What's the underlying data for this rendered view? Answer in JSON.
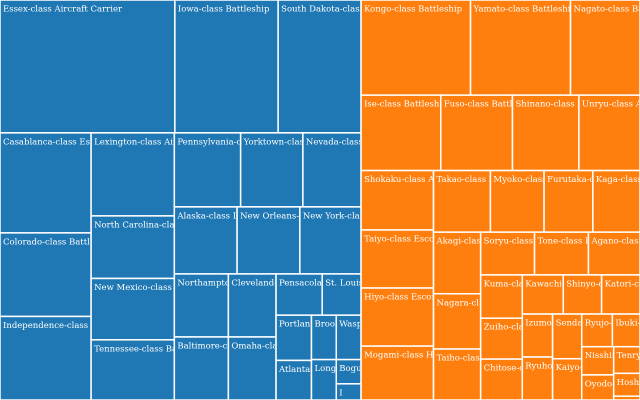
{
  "chart_data": {
    "type": "treemap",
    "groups": [
      {
        "color": "#1f77b4",
        "labels": [
          "Essex-class Aircraft Carrier",
          "Iowa-class Battleship",
          "South Dakota-class Battleship",
          "Casablanca-class Escort Carrier",
          "Colorado-class Battleship",
          "Independence-class Light Carrier",
          "Lexington-class Aircraft Carrier",
          "North Carolina-class Battleship",
          "New Mexico-class Battleship",
          "Tennessee-class Battleship",
          "Pennsylvania-class Battleship",
          "Yorktown-class Aircraft Carrier",
          "Nevada-class Battleship",
          "Alaska-class Large Cruiser",
          "New Orleans-class Heavy Cruiser",
          "New York-class Battleship",
          "Northampton-class Heavy Cruiser",
          "Baltimore-class Heavy Cruiser",
          "Cleveland-class Light Cruiser",
          "Omaha-class Light Cruiser",
          "Pensacola-class Heavy Cruiser",
          "St. Louis-class Light Cruiser",
          "Portland-class Heavy Cruiser",
          "Atlanta-class Light Cruiser",
          "Brooklyn-class Light Cruiser",
          "Wasp-class Aircraft Carrier",
          "Long Island-class Escort Carrier",
          "Bogue-class Escort Carrier",
          "I"
        ],
        "values": [
          232,
          137,
          110,
          91,
          76,
          76,
          69,
          52,
          51,
          50,
          49,
          46,
          43,
          42,
          42,
          41,
          34,
          34,
          30,
          30,
          19,
          16,
          16,
          14,
          11,
          11,
          10,
          6,
          4
        ]
      },
      {
        "color": "#ff7f0e",
        "labels": [
          "Kongo-class Battleship",
          "Yamato-class Battleship",
          "Nagato-class Battleship",
          "Ise-class Battleship",
          "Fuso-class Battleship",
          "Shinano-class Aircraft Carrier",
          "Unryu-class Aircraft Carrier",
          "Shokaku-class Aircraft Carrier",
          "Taiyo-class Escort Carrier",
          "Hiyo-class Escort Carrier",
          "Mogami-class Heavy Cruiser",
          "Takao-class Heavy Cruiser",
          "Myoko-class Heavy Cruiser",
          "Furutaka-class Heavy Cruiser",
          "Kaga-class Aircraft Carrier",
          "Akagi-class Aircraft Carrier",
          "Nagara-class Light Cruiser",
          "Taiho-class Aircraft Carrier",
          "Soryu-class Aircraft Carrier",
          "Tone-class Heavy Cruiser",
          "Agano-class Light Cruiser",
          "Kuma-class Light Cruiser",
          "Zuiho-class Light Carrier",
          "Chitose-class Light Carrier",
          "Kawachi-class Battleship",
          "Shinyo-class Escort Carrier",
          "Katori-class Light Cruiser",
          "Izumo-class Armored Cruiser",
          "Ryuho-class Light Carrier",
          "Sendai-class Light Cruiser",
          "Kaiyo-class Escort Carrier",
          "Ryujo-class Light Carrier",
          "Ibuki-class Aircraft Carrier",
          "Nisshin-class Seaplane Tender",
          "Oyodo-class Light Cruiser",
          "Tenryu-class Light Cruiser",
          "Hosho-class Aircraft Carrier",
          null
        ],
        "values": [
          104,
          95,
          66,
          60,
          54,
          50,
          46,
          43,
          42,
          42,
          39,
          35,
          33,
          30,
          29,
          29,
          26,
          24,
          23,
          23,
          22,
          18,
          17,
          17,
          16,
          15,
          15,
          13,
          13,
          13,
          12,
          10,
          9,
          9,
          8,
          7,
          6,
          1
        ]
      }
    ]
  }
}
